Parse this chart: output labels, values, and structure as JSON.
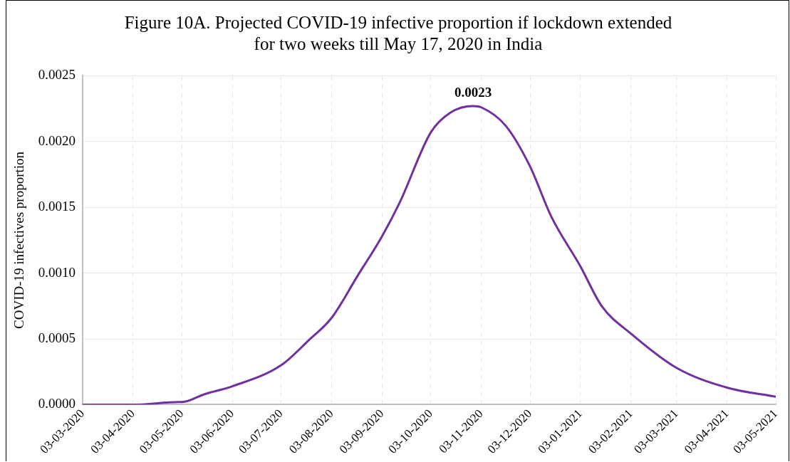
{
  "chart_data": {
    "type": "line",
    "title": "Figure 10A. Projected COVID-19 infective proportion if lockdown extended for two weeks till May 17, 2020 in India",
    "ylabel": "COVID-19 infectives proportion",
    "x": [
      "2020-03-03",
      "2020-04-03",
      "2020-05-01",
      "2020-05-03",
      "2020-05-17",
      "2020-06-03",
      "2020-07-03",
      "2020-07-20",
      "2020-08-03",
      "2020-08-19",
      "2020-09-03",
      "2020-09-14",
      "2020-10-03",
      "2020-10-15",
      "2020-10-29",
      "2020-11-03",
      "2020-11-18",
      "2020-12-03",
      "2020-12-16",
      "2021-01-03",
      "2021-01-16",
      "2021-02-03",
      "2021-03-03",
      "2021-04-03",
      "2021-05-03"
    ],
    "series": [
      {
        "color": "#7030a0",
        "values": [
          0,
          0,
          2e-05,
          2e-05,
          8e-05,
          0.00014,
          0.0003,
          0.00049,
          0.00066,
          0.00098,
          0.00128,
          0.00154,
          0.00207,
          0.00222,
          0.00227,
          0.00226,
          0.00212,
          0.00181,
          0.00143,
          0.00105,
          0.00075,
          0.00054,
          0.00028,
          0.00013,
          6e-05
        ]
      }
    ],
    "xlim": [
      "2020-03-03",
      "2021-05-03"
    ],
    "xticks": [
      {
        "value": "2020-03-03",
        "label": "03-03-2020"
      },
      {
        "value": "2020-04-03",
        "label": "03-04-2020"
      },
      {
        "value": "2020-05-03",
        "label": "03-05-2020"
      },
      {
        "value": "2020-06-03",
        "label": "03-06-2020"
      },
      {
        "value": "2020-07-03",
        "label": "03-07-2020"
      },
      {
        "value": "2020-08-03",
        "label": "03-08-2020"
      },
      {
        "value": "2020-09-03",
        "label": "03-09-2020"
      },
      {
        "value": "2020-10-03",
        "label": "03-10-2020"
      },
      {
        "value": "2020-11-03",
        "label": "03-11-2020"
      },
      {
        "value": "2020-12-03",
        "label": "03-12-2020"
      },
      {
        "value": "2021-01-03",
        "label": "03-01-2021"
      },
      {
        "value": "2021-02-03",
        "label": "03-02-2021"
      },
      {
        "value": "2021-03-03",
        "label": "03-03-2021"
      },
      {
        "value": "2021-04-03",
        "label": "03-04-2021"
      },
      {
        "value": "2021-05-03",
        "label": "03-05-2021"
      }
    ],
    "ylim": [
      0,
      0.0025
    ],
    "yticks": [
      {
        "value": 0,
        "label": "0.0000"
      },
      {
        "value": 0.0005,
        "label": "0.0005"
      },
      {
        "value": 0.001,
        "label": "0.0010"
      },
      {
        "value": 0.0015,
        "label": "0.0015"
      },
      {
        "value": 0.002,
        "label": "0.0020"
      },
      {
        "value": 0.0025,
        "label": "0.0025"
      }
    ],
    "annotations": [
      {
        "text": "0.0023",
        "x": "2020-10-29",
        "y": 0.00227
      }
    ],
    "grid": true,
    "legend": false,
    "marker": "none",
    "line_style": "solid"
  }
}
